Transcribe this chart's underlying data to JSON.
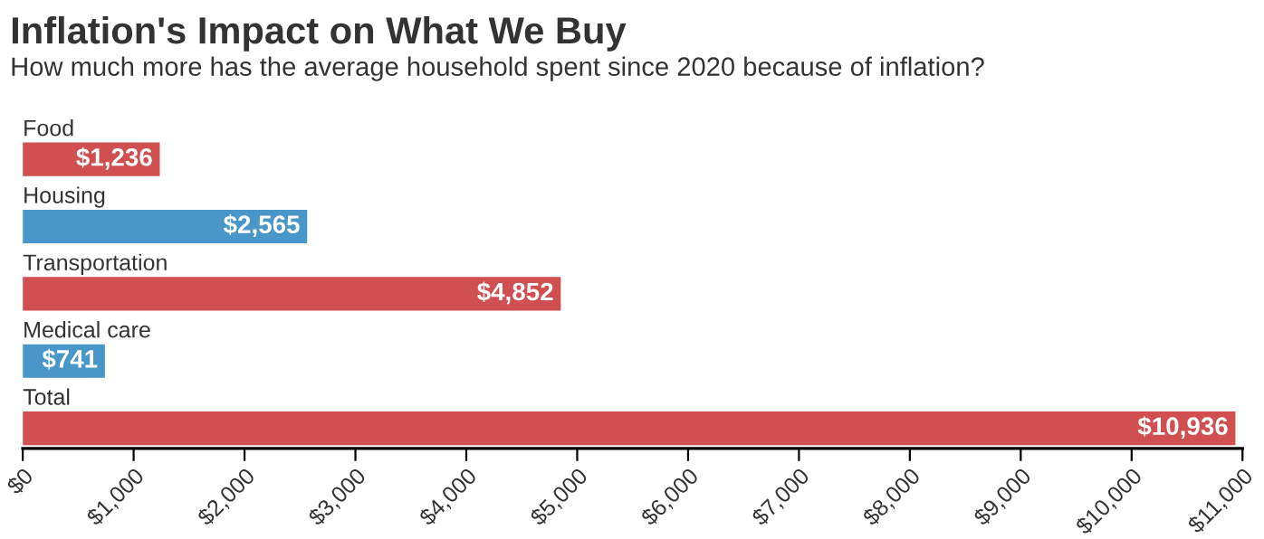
{
  "chart_data": {
    "type": "bar",
    "orientation": "horizontal",
    "title": "Inflation's Impact on What We Buy",
    "subtitle": "How much more has the average household spent since 2020 because of inflation?",
    "categories": [
      "Food",
      "Housing",
      "Transportation",
      "Medical care",
      "Total"
    ],
    "values": [
      1236,
      2565,
      4852,
      741,
      10936
    ],
    "colors": [
      "#d04f51",
      "#4897c8",
      "#d04f51",
      "#4897c8",
      "#d04f51"
    ],
    "value_labels": [
      "$1,236",
      "$2,565",
      "$4,852",
      "$741",
      "$10,936"
    ],
    "xlim": [
      0,
      11000
    ],
    "xticks": [
      {
        "value": 0,
        "label": "$0"
      },
      {
        "value": 1000,
        "label": "$1,000"
      },
      {
        "value": 2000,
        "label": "$2,000"
      },
      {
        "value": 3000,
        "label": "$3,000"
      },
      {
        "value": 4000,
        "label": "$4,000"
      },
      {
        "value": 5000,
        "label": "$5,000"
      },
      {
        "value": 6000,
        "label": "$6,000"
      },
      {
        "value": 7000,
        "label": "$7,000"
      },
      {
        "value": 8000,
        "label": "$8,000"
      },
      {
        "value": 9000,
        "label": "$9,000"
      },
      {
        "value": 10000,
        "label": "$10,000"
      },
      {
        "value": 11000,
        "label": "$11,000"
      }
    ],
    "grid": false,
    "legend": false
  }
}
